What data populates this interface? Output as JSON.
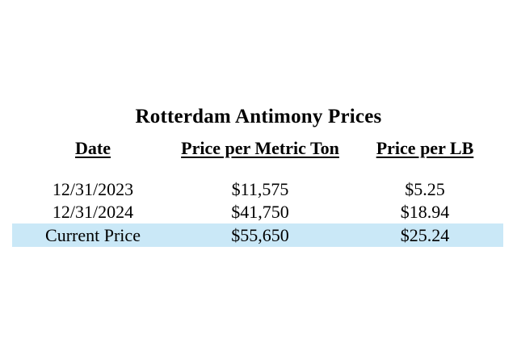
{
  "title": "Rotterdam Antimony Prices",
  "table": {
    "columns": [
      {
        "label": "Date"
      },
      {
        "label": "Price per Metric Ton"
      },
      {
        "label": "Price per LB"
      }
    ],
    "rows": [
      {
        "date": "12/31/2023",
        "price_per_metric_ton": "$11,575",
        "price_per_lb": "$5.25",
        "highlighted": false
      },
      {
        "date": "12/31/2024",
        "price_per_metric_ton": "$41,750",
        "price_per_lb": "$18.94",
        "highlighted": false
      },
      {
        "date": "Current Price",
        "price_per_metric_ton": "$55,650",
        "price_per_lb": "$25.24",
        "highlighted": true
      }
    ]
  },
  "colors": {
    "background": "#ffffff",
    "text": "#000000",
    "highlight": "#cae8f7"
  }
}
